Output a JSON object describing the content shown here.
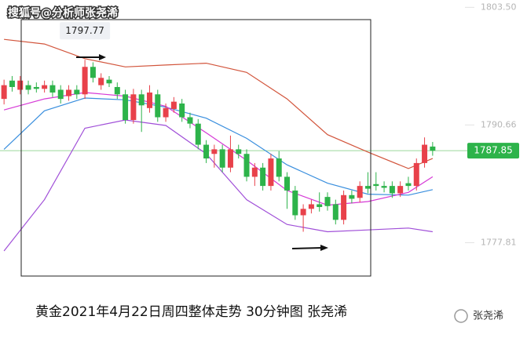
{
  "chart_data": {
    "type": "candlestick",
    "watermark": "搜狐号@分析师张尧浠",
    "title": "黄金2021年4月22日周四整体走势  30分钟图 张尧浠",
    "author": "张尧浠",
    "up_color": "#e8414a",
    "down_color": "#2db34a",
    "open": [
      1793.5,
      1795.5,
      1794.5,
      1795,
      1794.8,
      1794.6,
      1795,
      1794.5,
      1793.8,
      1794.5,
      1794,
      1797,
      1795,
      1795.6,
      1794.8,
      1794,
      1791.2,
      1794,
      1792.5,
      1794,
      1791.5,
      1792.4,
      1793,
      1791.5,
      1790.8,
      1788.5,
      1787.5,
      1788,
      1786,
      1788,
      1787.5,
      1785,
      1786,
      1784,
      1787,
      1785,
      1783.5,
      1780.8,
      1781.5,
      1782,
      1782.8,
      1782,
      1780.3,
      1783,
      1782.7,
      1784,
      1784.2,
      1784,
      1784,
      1783.2,
      1784.3,
      1784,
      1786.5,
      1788.3
    ],
    "high": [
      1795.6,
      1796.0,
      1796.0,
      1795.5,
      1795.3,
      1795.5,
      1795.5,
      1795.0,
      1795.0,
      1795.0,
      1797.77,
      1797.5,
      1796.3,
      1796.0,
      1795.3,
      1794.5,
      1794.6,
      1794.5,
      1795.0,
      1794.5,
      1793.0,
      1793.7,
      1793.5,
      1792.0,
      1791.3,
      1789.0,
      1788.5,
      1788.5,
      1789.5,
      1788.5,
      1788.0,
      1786.5,
      1786.5,
      1787.5,
      1787.8,
      1785.5,
      1784.0,
      1782.0,
      1782.5,
      1783.3,
      1783.3,
      1782.5,
      1783.5,
      1783.5,
      1784.5,
      1785.5,
      1785.5,
      1784.5,
      1784.5,
      1784.5,
      1785.0,
      1787.0,
      1789.3,
      1788.8
    ],
    "low": [
      1792.9,
      1794.3,
      1794.0,
      1794.0,
      1794.2,
      1794.2,
      1793.7,
      1793.0,
      1793.3,
      1793.5,
      1793.5,
      1795.3,
      1794.5,
      1794.8,
      1793.5,
      1790.8,
      1790.8,
      1789.9,
      1792.0,
      1791.0,
      1791.0,
      1792.0,
      1791.0,
      1790.3,
      1788.0,
      1786.5,
      1786.0,
      1785.5,
      1785.5,
      1787.0,
      1784.5,
      1784.0,
      1783.5,
      1783.5,
      1784.5,
      1781.5,
      1780.3,
      1779.0,
      1781.0,
      1781.2,
      1781.3,
      1779.8,
      1779.8,
      1782.1,
      1782.2,
      1783.2,
      1783.5,
      1783.3,
      1782.7,
      1782.8,
      1783.5,
      1783.5,
      1786.0,
      1787.3
    ],
    "close": [
      1795,
      1794.8,
      1795.5,
      1794.5,
      1794.6,
      1795,
      1794.2,
      1793.5,
      1794.5,
      1794,
      1797,
      1795.8,
      1795.8,
      1795.2,
      1794,
      1791.2,
      1794,
      1792.8,
      1794.2,
      1791.5,
      1792.5,
      1793.2,
      1791.5,
      1790.8,
      1788.5,
      1787,
      1788,
      1786,
      1788,
      1787.5,
      1785,
      1786,
      1784,
      1787,
      1785,
      1783.5,
      1780.8,
      1781.5,
      1782,
      1781.7,
      1781.8,
      1780.3,
      1783,
      1782.6,
      1784,
      1783.7,
      1784,
      1783.8,
      1783.2,
      1784,
      1784,
      1786.5,
      1788.5,
      1787.85
    ],
    "series": [
      {
        "color": "#d2553c",
        "x": [
          0,
          5,
          10,
          15,
          20,
          25,
          30,
          35,
          40,
          45,
          50,
          53
        ],
        "values": [
          1800.0,
          1799.5,
          1797.9,
          1797.0,
          1797.2,
          1797.4,
          1796.4,
          1793.5,
          1789.6,
          1787.7,
          1785.9,
          1787.0
        ]
      },
      {
        "color": "#3a8fde",
        "x": [
          0,
          5,
          10,
          15,
          20,
          25,
          30,
          35,
          40,
          45,
          50,
          53
        ],
        "values": [
          1788.0,
          1792.2,
          1793.6,
          1793.4,
          1792.6,
          1791.4,
          1789.2,
          1786.3,
          1784.3,
          1783.1,
          1783.0,
          1783.6
        ]
      },
      {
        "color": "#d63ad6",
        "x": [
          0,
          5,
          10,
          15,
          20,
          25,
          30,
          35,
          40,
          45,
          50,
          53
        ],
        "values": [
          1792.3,
          1793.5,
          1794.2,
          1793.8,
          1792.7,
          1789.8,
          1786.8,
          1783.5,
          1781.9,
          1782.3,
          1783.3,
          1785.0
        ]
      },
      {
        "color": "#a04fd8",
        "x": [
          0,
          5,
          10,
          15,
          20,
          25,
          30,
          35,
          40,
          45,
          50,
          53
        ],
        "values": [
          1776.9,
          1782.5,
          1790.3,
          1791.2,
          1790.6,
          1787.5,
          1782.5,
          1779.8,
          1779.0,
          1779.2,
          1779.4,
          1779.0
        ]
      }
    ],
    "high_label": 1797.77,
    "last_price": 1787.85,
    "last_price_color": "#2db34a",
    "xlim": [
      -0.5,
      53.5
    ],
    "ylim": [
      1767.4,
      1804.3
    ],
    "yticks": [
      {
        "value": 1803.5,
        "label": "1803.50"
      },
      1790.66,
      1777.81
    ]
  }
}
